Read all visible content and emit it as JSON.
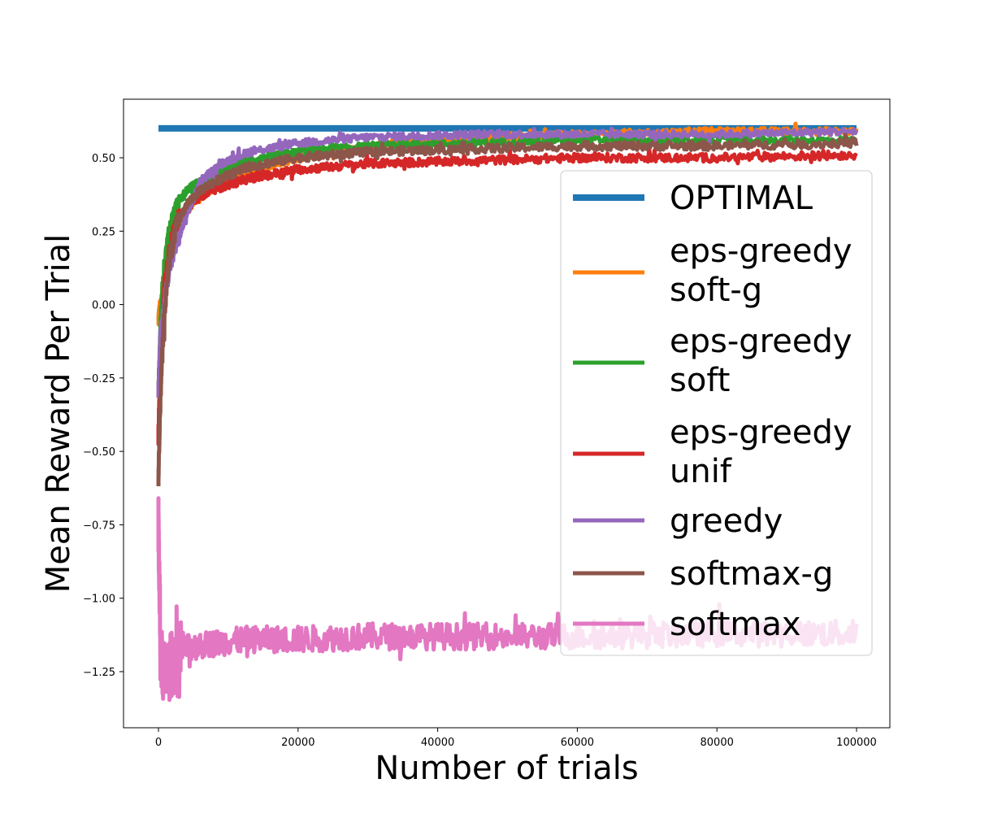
{
  "chart_data": {
    "type": "line",
    "title": "",
    "xlabel": "Number of trials",
    "ylabel": "Mean Reward Per Trial",
    "xlim": [
      -5000,
      105000
    ],
    "ylim": [
      -1.4,
      0.705
    ],
    "xticks": [
      0,
      20000,
      40000,
      60000,
      80000,
      100000
    ],
    "xtick_labels": [
      "0",
      "20000",
      "40000",
      "60000",
      "80000",
      "100000"
    ],
    "yticks": [
      0.5,
      0.25,
      0.0,
      -0.25,
      -0.5,
      -0.75,
      -1.0,
      -1.25
    ],
    "ytick_labels": [
      "0.50",
      "0.25",
      "0.00",
      "−0.25",
      "−0.50",
      "−0.75",
      "−1.00",
      "−1.25"
    ],
    "grid": false,
    "legend_position": "right",
    "series": [
      {
        "name": "OPTIMAL",
        "color": "#1f77b4",
        "x": [
          0,
          100000
        ],
        "y": [
          0.6,
          0.6
        ]
      },
      {
        "name": "eps-greedy\nsoft-g",
        "color": "#ff7f0e",
        "x": [
          0,
          300,
          800,
          1500,
          2500,
          4000,
          6000,
          9000,
          13000,
          20000,
          30000,
          45000,
          60000,
          80000,
          100000
        ],
        "y": [
          -0.05,
          0.0,
          0.08,
          0.18,
          0.27,
          0.33,
          0.37,
          0.41,
          0.45,
          0.5,
          0.54,
          0.57,
          0.58,
          0.59,
          0.59
        ]
      },
      {
        "name": "eps-greedy\nsoft",
        "color": "#2ca02c",
        "x": [
          0,
          300,
          800,
          1500,
          2500,
          4000,
          6000,
          9000,
          13000,
          20000,
          30000,
          45000,
          60000,
          80000,
          100000
        ],
        "y": [
          -0.3,
          -0.05,
          0.12,
          0.25,
          0.33,
          0.39,
          0.42,
          0.46,
          0.49,
          0.52,
          0.54,
          0.55,
          0.56,
          0.56,
          0.56
        ]
      },
      {
        "name": "eps-greedy\nunif",
        "color": "#d62728",
        "x": [
          0,
          300,
          800,
          1500,
          2500,
          4000,
          6000,
          9000,
          13000,
          20000,
          30000,
          45000,
          60000,
          80000,
          100000
        ],
        "y": [
          -0.45,
          -0.2,
          0.05,
          0.18,
          0.27,
          0.33,
          0.37,
          0.4,
          0.43,
          0.46,
          0.48,
          0.49,
          0.5,
          0.5,
          0.51
        ]
      },
      {
        "name": "greedy",
        "color": "#9467bd",
        "x": [
          0,
          300,
          800,
          1500,
          2500,
          4000,
          6000,
          9000,
          13000,
          20000,
          30000,
          45000,
          60000,
          80000,
          100000
        ],
        "y": [
          -0.3,
          -0.1,
          0.0,
          0.12,
          0.2,
          0.3,
          0.42,
          0.48,
          0.52,
          0.55,
          0.57,
          0.58,
          0.58,
          0.58,
          0.59
        ]
      },
      {
        "name": "softmax-g",
        "color": "#8c564b",
        "x": [
          0,
          300,
          800,
          1500,
          2500,
          4000,
          6000,
          9000,
          13000,
          20000,
          30000,
          45000,
          60000,
          80000,
          100000
        ],
        "y": [
          -0.6,
          -0.3,
          -0.05,
          0.15,
          0.26,
          0.34,
          0.39,
          0.43,
          0.47,
          0.5,
          0.52,
          0.53,
          0.54,
          0.54,
          0.55
        ]
      },
      {
        "name": "softmax",
        "color": "#e377c2",
        "x": [
          0,
          300,
          800,
          1500,
          2500,
          4000,
          6000,
          9000,
          13000,
          20000,
          30000,
          45000,
          60000,
          80000,
          100000
        ],
        "y": [
          -0.75,
          -1.2,
          -1.26,
          -1.24,
          -1.2,
          -1.17,
          -1.16,
          -1.15,
          -1.14,
          -1.14,
          -1.13,
          -1.13,
          -1.13,
          -1.12,
          -1.12
        ]
      }
    ]
  }
}
